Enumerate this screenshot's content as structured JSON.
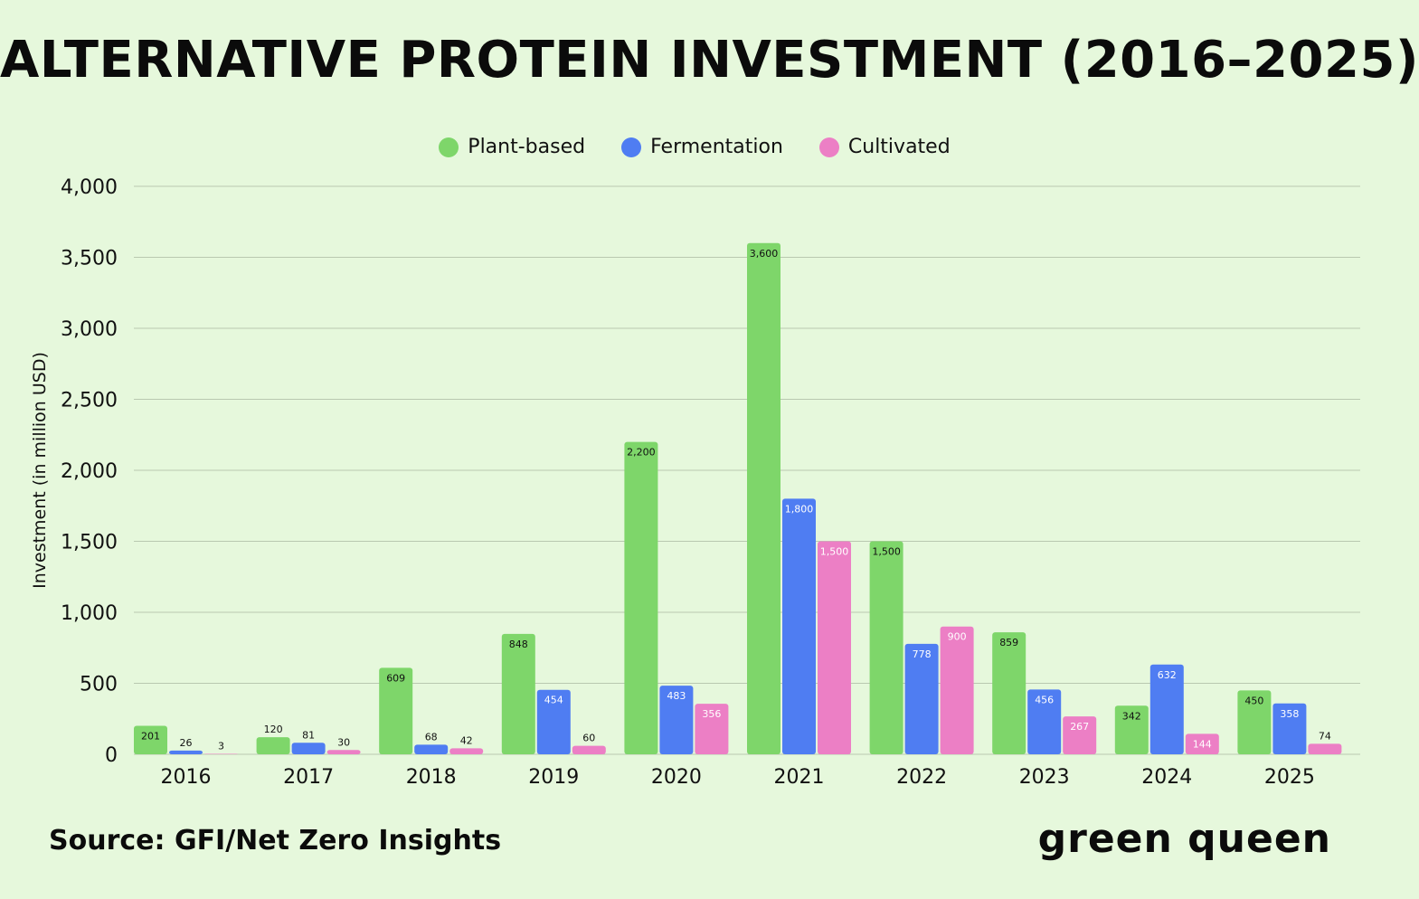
{
  "header": {
    "title": "ALTERNATIVE PROTEIN INVESTMENT (2016–2025)"
  },
  "legend": {
    "items": [
      "Plant-based",
      "Fermentation",
      "Cultivated"
    ]
  },
  "axes": {
    "ylabel": "Investment (in million USD)"
  },
  "footer": {
    "source": "Source: GFI/Net Zero Insights",
    "brand": "green queen"
  },
  "colors": {
    "background": "#e6f8dc",
    "plant": "#7ed66a",
    "fermentation": "#4f7df2",
    "cultivated": "#ec7fc5",
    "grid": "#b9c9b0",
    "text": "#111111"
  },
  "chart_data": {
    "type": "bar",
    "title": "ALTERNATIVE PROTEIN INVESTMENT (2016–2025)",
    "xlabel": "",
    "ylabel": "Investment (in million USD)",
    "categories": [
      "2016",
      "2017",
      "2018",
      "2019",
      "2020",
      "2021",
      "2022",
      "2023",
      "2024",
      "2025"
    ],
    "series": [
      {
        "name": "Plant-based",
        "color": "#7ed66a",
        "values": [
          201,
          120,
          609,
          848,
          2200,
          3600,
          1500,
          859,
          342,
          450
        ],
        "labels": [
          "201",
          "120",
          "609",
          "848",
          "2,200",
          "3,600",
          "1,500",
          "859",
          "342",
          "450"
        ]
      },
      {
        "name": "Fermentation",
        "color": "#4f7df2",
        "values": [
          26,
          81,
          68,
          454,
          483,
          1800,
          778,
          456,
          632,
          358
        ],
        "labels": [
          "26",
          "81",
          "68",
          "454",
          "483",
          "1,800",
          "778",
          "456",
          "632",
          "358"
        ]
      },
      {
        "name": "Cultivated",
        "color": "#ec7fc5",
        "values": [
          3,
          30,
          42,
          60,
          356,
          1500,
          900,
          267,
          144,
          74
        ],
        "labels": [
          "3",
          "30",
          "42",
          "60",
          "356",
          "1,500",
          "900",
          "267",
          "144",
          "74"
        ]
      }
    ],
    "ylim": [
      0,
      4000
    ],
    "yticks": [
      "0",
      "500",
      "1,000",
      "1,500",
      "2,000",
      "2,500",
      "3,000",
      "3,500",
      "4,000"
    ],
    "ytick_values": [
      0,
      500,
      1000,
      1500,
      2000,
      2500,
      3000,
      3500,
      4000
    ],
    "grid": true,
    "legend_position": "top-center"
  }
}
